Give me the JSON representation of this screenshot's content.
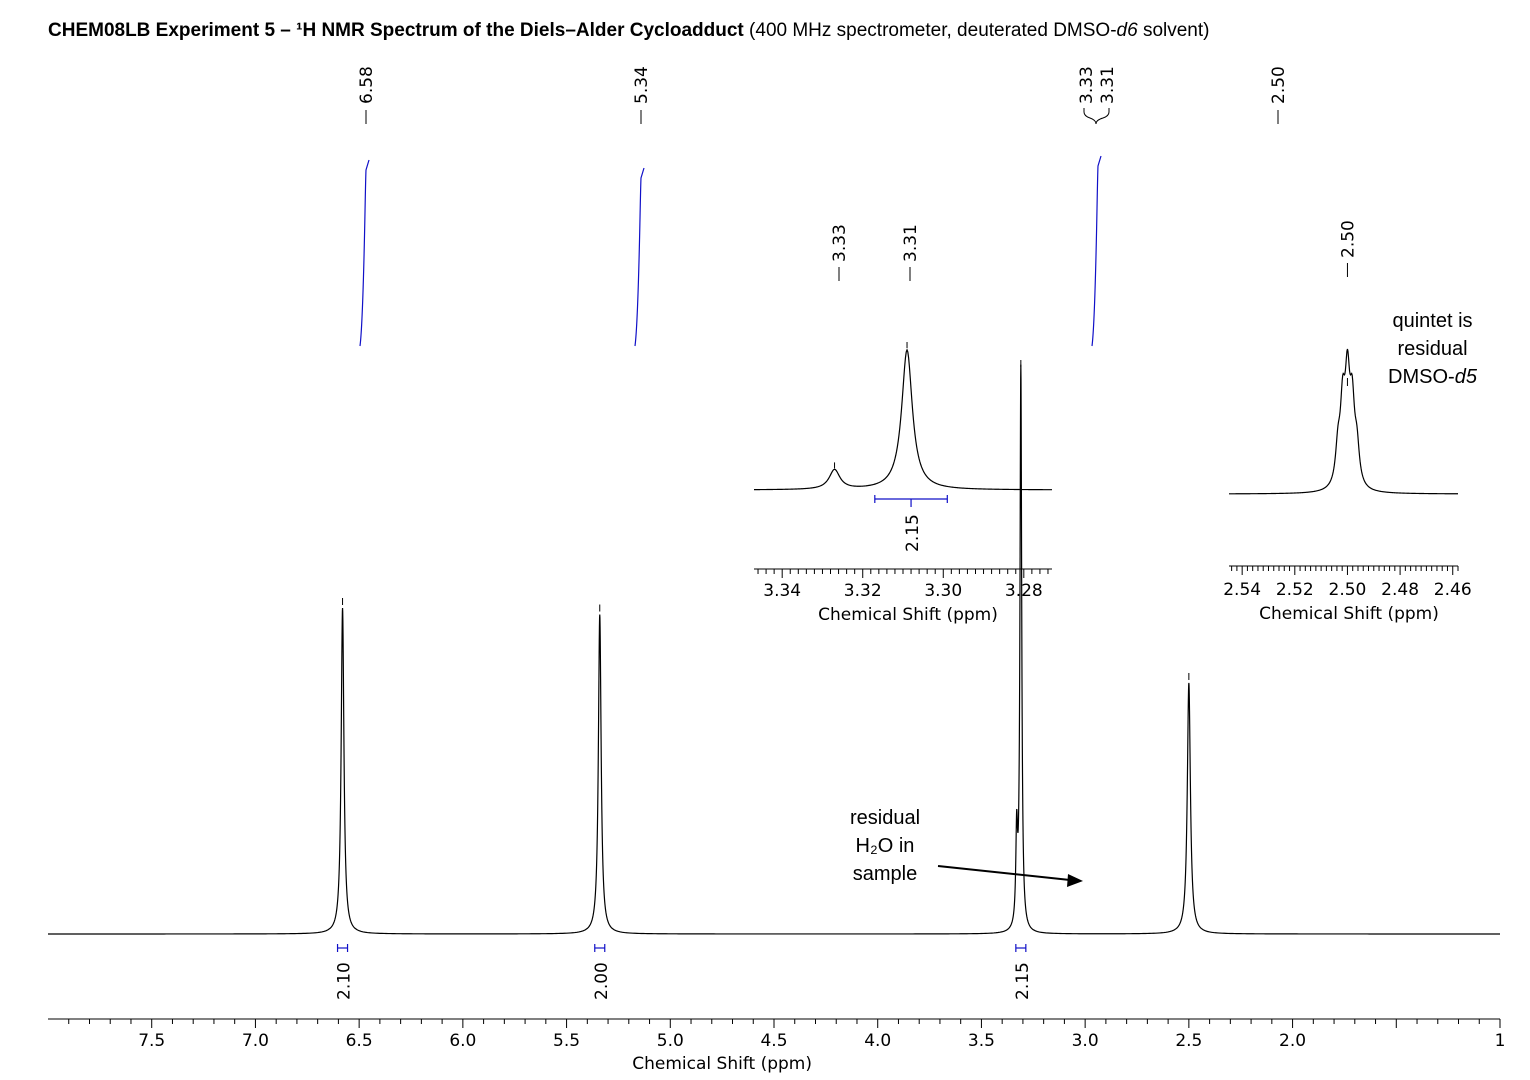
{
  "title": {
    "bold_part": "CHEM08LB Experiment 5 – ¹H NMR Spectrum of the Diels–Alder Cycloadduct",
    "normal_part_1": " (400 MHz spectrometer, deuterated DMSO-",
    "italic_1": "d6",
    "normal_part_2": " solvent)"
  },
  "annotations": {
    "water": [
      "residual",
      "H₂O in",
      "sample"
    ],
    "quintet_lines": [
      "quintet is",
      "residual"
    ],
    "quintet_prefix": "DMSO-",
    "quintet_italic": "d5"
  },
  "colors": {
    "spectrum": "#000000",
    "integral": "#1010c8"
  },
  "chart_data": [
    {
      "type": "line",
      "name": "main-spectrum",
      "xlabel": "Chemical Shift (ppm)",
      "x_reversed": true,
      "xlim": [
        1.0,
        8.0
      ],
      "ticks": [
        {
          "v": 7.5,
          "label": "7.5"
        },
        {
          "v": 7.0,
          "label": "7.0"
        },
        {
          "v": 6.5,
          "label": "6.5"
        },
        {
          "v": 6.0,
          "label": "6.0"
        },
        {
          "v": 5.5,
          "label": "5.5"
        },
        {
          "v": 5.0,
          "label": "5.0"
        },
        {
          "v": 4.5,
          "label": "4.5"
        },
        {
          "v": 4.0,
          "label": "4.0"
        },
        {
          "v": 3.5,
          "label": "3.5"
        },
        {
          "v": 3.0,
          "label": "3.0"
        },
        {
          "v": 2.5,
          "label": "2.5"
        },
        {
          "v": 2.0,
          "label": "2.0"
        },
        {
          "v": 1.0,
          "label": "1"
        }
      ],
      "peaks": [
        {
          "ppm": 6.58,
          "height": 1.0,
          "width": 0.008
        },
        {
          "ppm": 5.34,
          "height": 0.98,
          "width": 0.008
        },
        {
          "ppm": 3.33,
          "height": 0.28,
          "width": 0.005
        },
        {
          "ppm": 3.31,
          "height": 1.73,
          "width": 0.005
        },
        {
          "ppm": 2.5,
          "height": 0.77,
          "width": 0.009
        }
      ],
      "peak_labels": [
        "6.58",
        "5.34",
        "3.33",
        "3.31",
        "2.50"
      ],
      "integrals": [
        {
          "ppm": 6.58,
          "value": "2.10"
        },
        {
          "ppm": 5.34,
          "value": "2.00"
        },
        {
          "ppm": 3.31,
          "value": "2.15"
        }
      ]
    },
    {
      "type": "line",
      "name": "inset-3.31",
      "xlabel": "Chemical Shift (ppm)",
      "x_reversed": true,
      "xlim": [
        3.273,
        3.347
      ],
      "ticks": [
        {
          "v": 3.34,
          "label": "3.34"
        },
        {
          "v": 3.32,
          "label": "3.32"
        },
        {
          "v": 3.3,
          "label": "3.30"
        },
        {
          "v": 3.28,
          "label": "3.28"
        }
      ],
      "peaks": [
        {
          "ppm": 3.327,
          "height": 0.14
        },
        {
          "ppm": 3.309,
          "height": 1.0
        }
      ],
      "peak_labels": [
        "3.33",
        "3.31"
      ],
      "integral": {
        "from": 3.317,
        "to": 3.299,
        "value": "2.15"
      }
    },
    {
      "type": "line",
      "name": "inset-2.50",
      "xlabel": "Chemical Shift (ppm)",
      "x_reversed": true,
      "xlim": [
        2.458,
        2.545
      ],
      "ticks": [
        {
          "v": 2.54,
          "label": "2.54"
        },
        {
          "v": 2.52,
          "label": "2.52"
        },
        {
          "v": 2.5,
          "label": "2.50"
        },
        {
          "v": 2.48,
          "label": "2.48"
        },
        {
          "v": 2.46,
          "label": "2.46"
        }
      ],
      "quintet_ppm": 2.5,
      "peak_labels": [
        "2.50"
      ]
    }
  ]
}
